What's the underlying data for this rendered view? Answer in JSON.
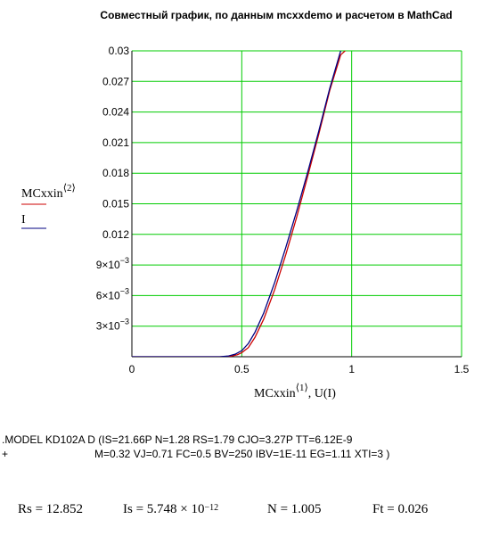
{
  "chart_data": {
    "type": "line",
    "title": "Совместный график, по данным mcxxdemo и расчетом в MathCad",
    "xlabel": "MCxxin⟨1⟩, U(I)",
    "ylabel_series": [
      {
        "text_main": "MCxxin",
        "text_sup": "⟨2⟩",
        "color": "#cc0000"
      },
      {
        "text_main": "I",
        "text_sup": "",
        "color": "#000080"
      }
    ],
    "xlim": [
      0,
      1.5
    ],
    "ylim": [
      0,
      0.03
    ],
    "x_ticks": [
      "0",
      "0.5",
      "1",
      "1.5"
    ],
    "y_ticks": [
      {
        "value": 0.003,
        "mant": "3×10",
        "exp": "−3"
      },
      {
        "value": 0.006,
        "mant": "6×10",
        "exp": "−3"
      },
      {
        "value": 0.009,
        "mant": "9×10",
        "exp": "−3"
      },
      {
        "value": 0.012,
        "label": "0.012"
      },
      {
        "value": 0.015,
        "label": "0.015"
      },
      {
        "value": 0.018,
        "label": "0.018"
      },
      {
        "value": 0.021,
        "label": "0.021"
      },
      {
        "value": 0.024,
        "label": "0.024"
      },
      {
        "value": 0.027,
        "label": "0.027"
      },
      {
        "value": 0.03,
        "label": "0.03"
      }
    ],
    "grid_x": [
      0.5,
      1.0
    ],
    "grid_y": [
      0.003,
      0.006,
      0.009,
      0.012,
      0.015,
      0.018,
      0.021,
      0.024,
      0.027
    ],
    "grid_color": "#00cc00",
    "series": [
      {
        "key": "MCxxin<2>",
        "color": "#cc0000",
        "x": [
          0.0,
          0.4,
          0.45,
          0.48,
          0.5,
          0.53,
          0.56,
          0.6,
          0.65,
          0.7,
          0.75,
          0.8,
          0.85,
          0.9,
          0.95,
          0.98
        ],
        "y": [
          0.0,
          0.0,
          5e-05,
          0.0002,
          0.0004,
          0.0009,
          0.0019,
          0.0037,
          0.0066,
          0.01,
          0.0137,
          0.0177,
          0.0218,
          0.0261,
          0.0296,
          0.0302
        ]
      },
      {
        "key": "I",
        "color": "#000080",
        "x": [
          0.0,
          0.4,
          0.44,
          0.47,
          0.5,
          0.53,
          0.56,
          0.6,
          0.65,
          0.7,
          0.75,
          0.8,
          0.85,
          0.9,
          0.95,
          0.97
        ],
        "y": [
          0.0,
          0.0,
          8e-05,
          0.00025,
          0.0006,
          0.0013,
          0.0024,
          0.0043,
          0.0073,
          0.0107,
          0.0143,
          0.0181,
          0.0221,
          0.0263,
          0.03,
          0.0305
        ]
      }
    ]
  },
  "model": {
    "line1": ".MODEL KD102A D (IS=21.66P N=1.28 RS=1.79 CJO=3.27P TT=6.12E-9",
    "line2_prefix": "+",
    "line2": "M=0.32 VJ=0.71 FC=0.5 BV=250 IBV=1E-11 EG=1.11 XTI=3 )"
  },
  "results": {
    "rs": "Rs = 12.852",
    "is_main": "Is = 5.748 × 10",
    "is_exp": "−12",
    "n": "N = 1.005",
    "ft": "Ft = 0.026"
  }
}
